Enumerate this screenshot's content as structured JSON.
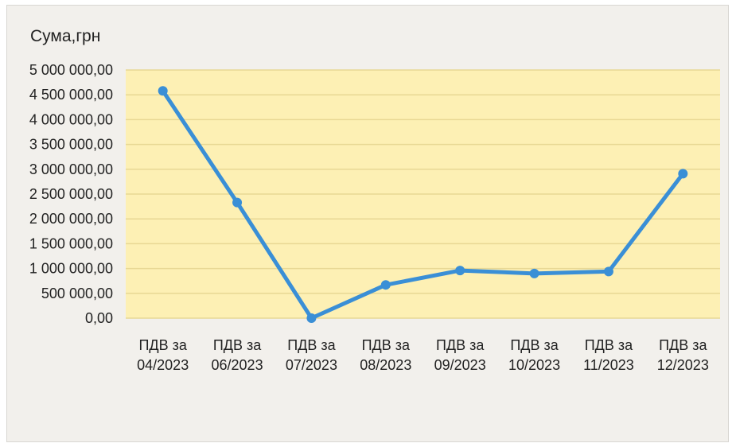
{
  "chart_data": {
    "type": "line",
    "ylabel": "Сума,грн",
    "categories": [
      [
        "ПДВ за",
        "04/2023"
      ],
      [
        "ПДВ за",
        "06/2023"
      ],
      [
        "ПДВ за",
        "07/2023"
      ],
      [
        "ПДВ за",
        "08/2023"
      ],
      [
        "ПДВ за",
        "09/2023"
      ],
      [
        "ПДВ за",
        "10/2023"
      ],
      [
        "ПДВ за",
        "11/2023"
      ],
      [
        "ПДВ за",
        "12/2023"
      ]
    ],
    "values": [
      4580000,
      2330000,
      0,
      670000,
      960000,
      900000,
      940000,
      2910000
    ],
    "ylim": [
      0,
      5000000
    ],
    "yticks": [
      0,
      500000,
      1000000,
      1500000,
      2000000,
      2500000,
      3000000,
      3500000,
      4000000,
      4500000,
      5000000
    ],
    "ytick_labels": [
      "0,00",
      "500 000,00",
      "1 000 000,00",
      "1 500 000,00",
      "2 000 000,00",
      "2 500 000,00",
      "3 000 000,00",
      "3 500 000,00",
      "4 000 000,00",
      "4 500 000,00",
      "5 000 000,00"
    ],
    "grid": true,
    "colors": {
      "line": "#3a8fd6",
      "plot_background": "#fdf0b4",
      "gridline": "#e8d894"
    }
  }
}
